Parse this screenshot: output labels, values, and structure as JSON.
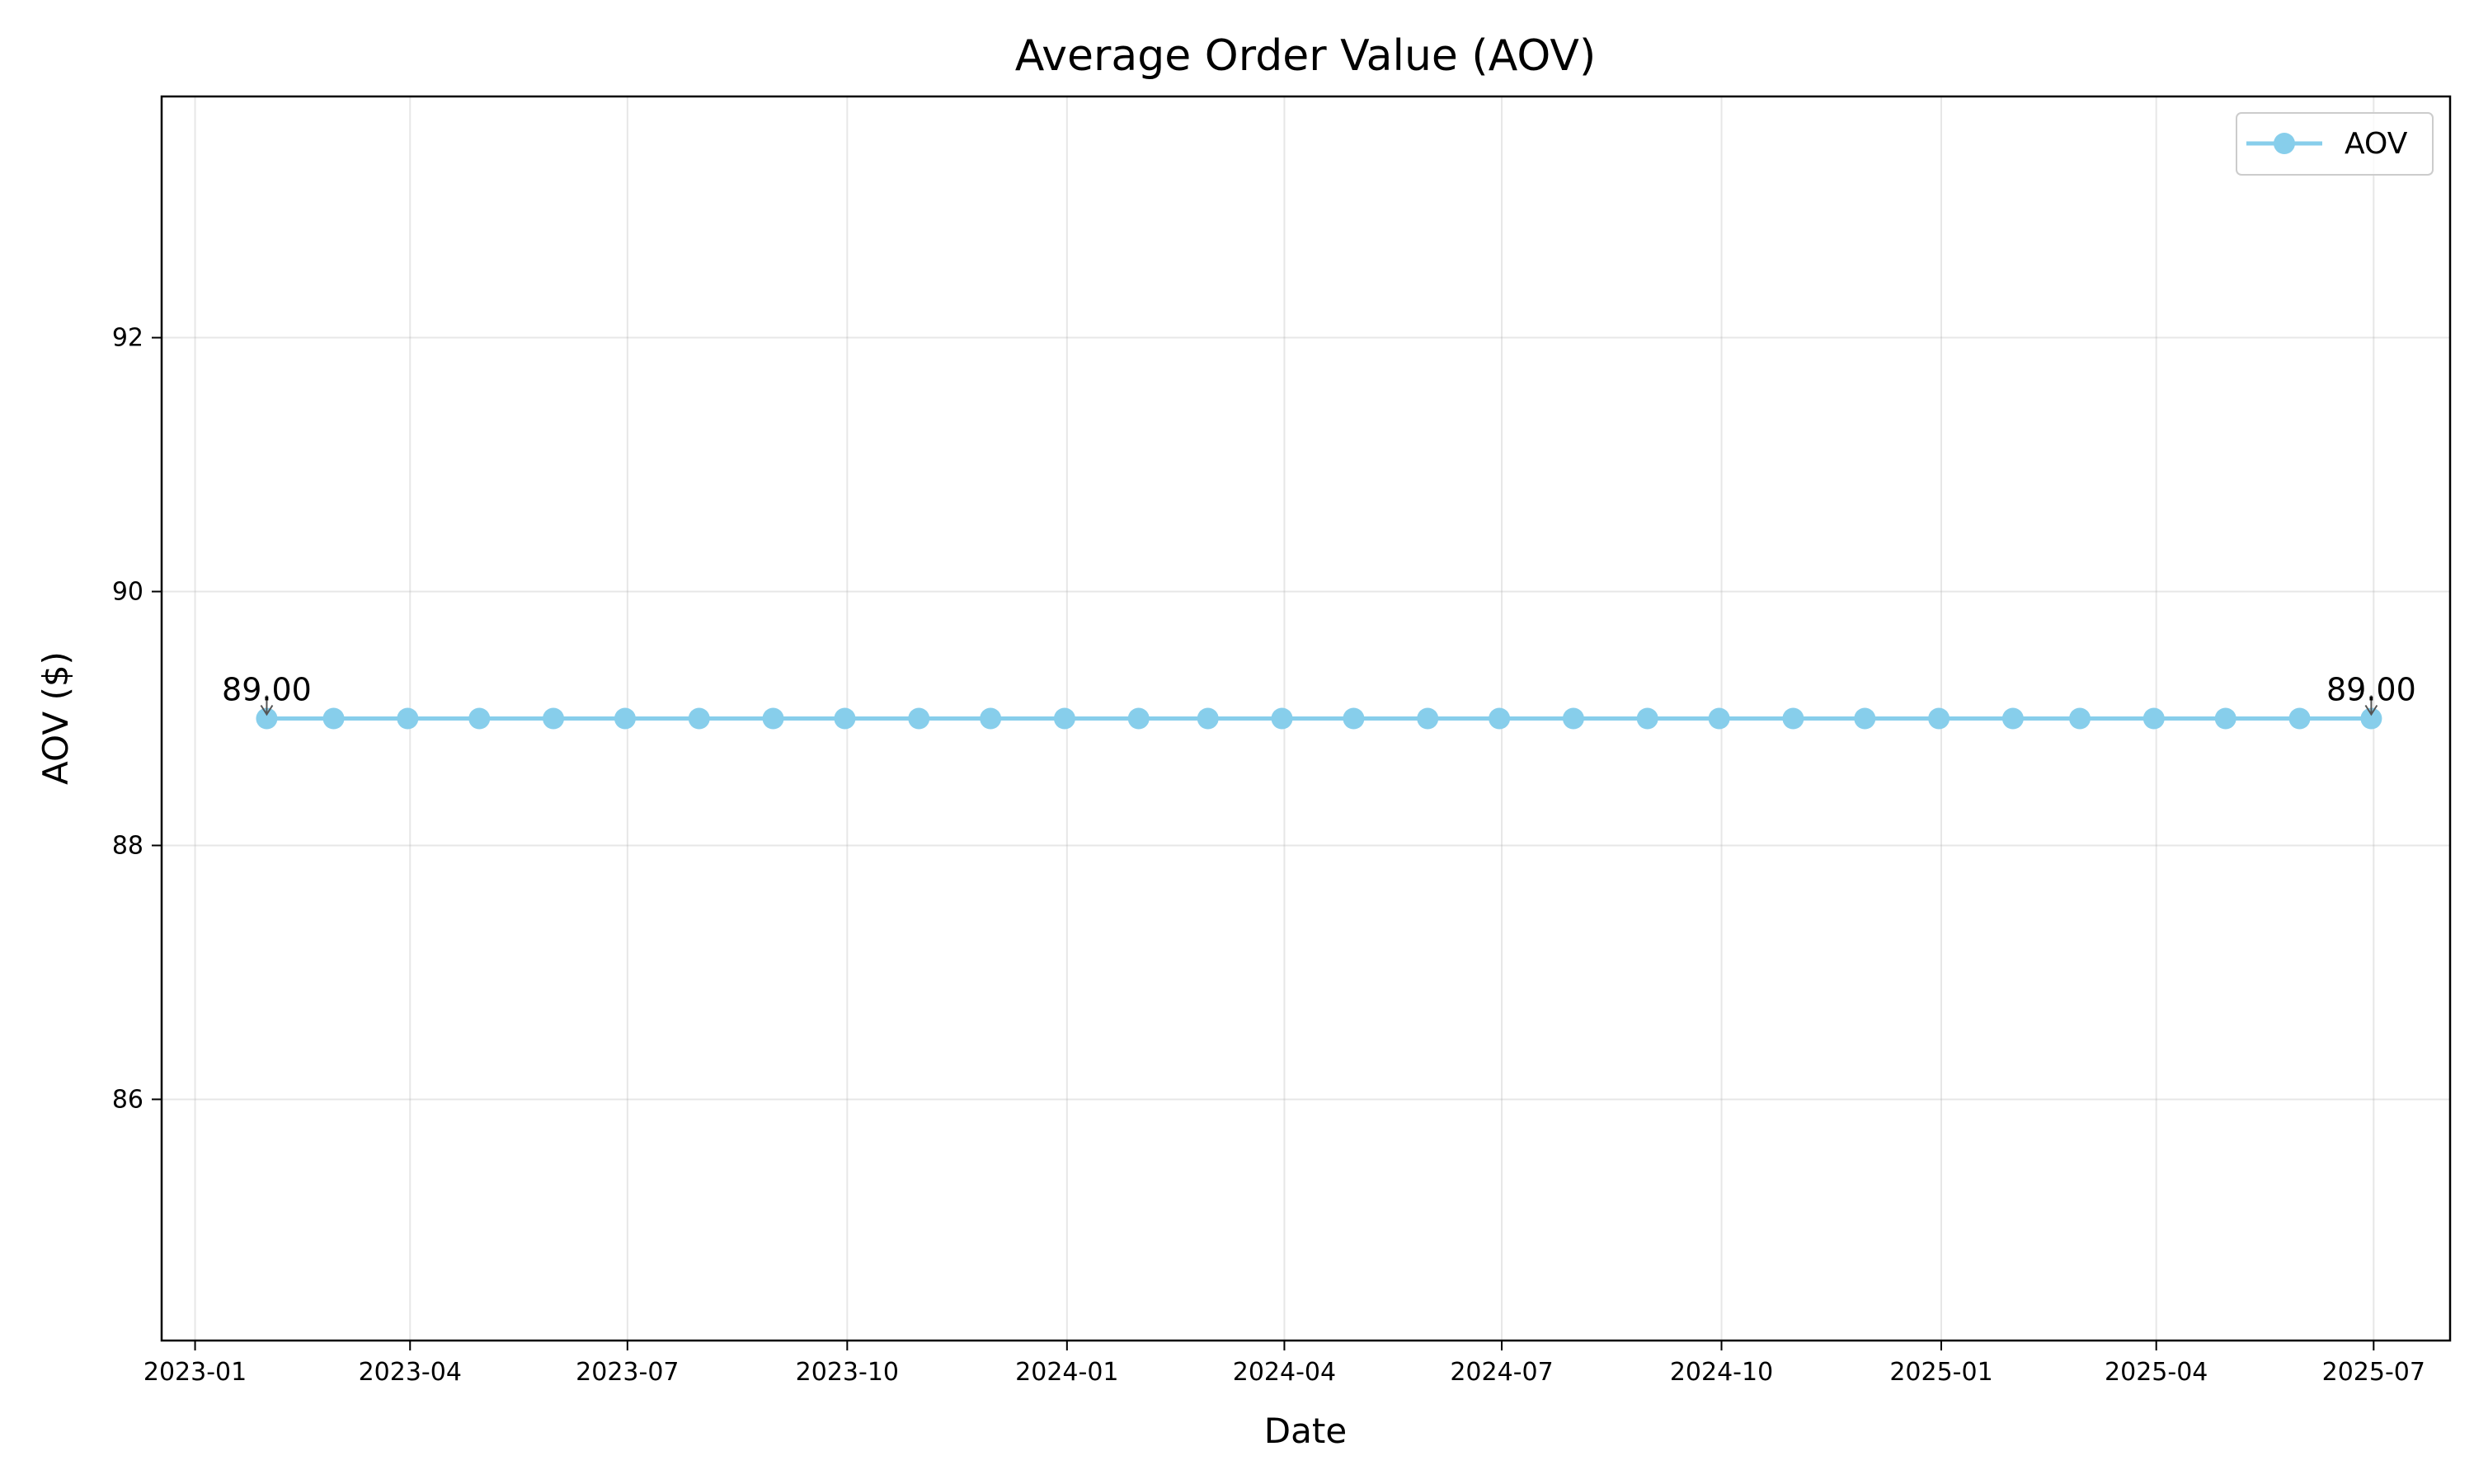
{
  "chart_data": {
    "type": "line",
    "title": "Average Order Value (AOV)",
    "xlabel": "Date",
    "ylabel": "AOV ($)",
    "xlim": [
      "2022-12-18",
      "2025-08-02"
    ],
    "ylim": [
      84.1,
      93.9
    ],
    "x_ticks": [
      "2023-01",
      "2023-04",
      "2023-07",
      "2023-10",
      "2024-01",
      "2024-04",
      "2024-07",
      "2024-10",
      "2025-01",
      "2025-04",
      "2025-07"
    ],
    "y_ticks": [
      86,
      88,
      90,
      92
    ],
    "grid": true,
    "legend_position": "top-right",
    "x": [
      "2023-01-31",
      "2023-02-28",
      "2023-03-31",
      "2023-04-30",
      "2023-05-31",
      "2023-06-30",
      "2023-07-31",
      "2023-08-31",
      "2023-09-30",
      "2023-10-31",
      "2023-11-30",
      "2023-12-31",
      "2024-01-31",
      "2024-02-29",
      "2024-03-31",
      "2024-04-30",
      "2024-05-31",
      "2024-06-30",
      "2024-07-31",
      "2024-08-31",
      "2024-09-30",
      "2024-10-31",
      "2024-11-30",
      "2024-12-31",
      "2025-01-31",
      "2025-02-28",
      "2025-03-31",
      "2025-04-30",
      "2025-05-31",
      "2025-06-30"
    ],
    "series": [
      {
        "name": "AOV",
        "color": "#87ceeb",
        "values": [
          89,
          89,
          89,
          89,
          89,
          89,
          89,
          89,
          89,
          89,
          89,
          89,
          89,
          89,
          89,
          89,
          89,
          89,
          89,
          89,
          89,
          89,
          89,
          89,
          89,
          89,
          89,
          89,
          89,
          89
        ]
      }
    ],
    "annotations": [
      {
        "x": "2023-01-31",
        "y": 89,
        "text": "89.00"
      },
      {
        "x": "2025-06-30",
        "y": 89,
        "text": "89.00"
      }
    ]
  }
}
